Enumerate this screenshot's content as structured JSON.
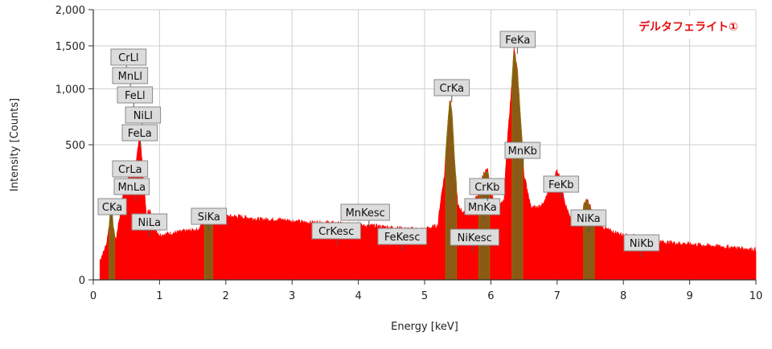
{
  "chart_data": {
    "type": "area",
    "title": "デルタフェライト①",
    "xlabel": "Energy [keV]",
    "ylabel": "Intensity [Counts]",
    "xlim": [
      0,
      10
    ],
    "ylim": [
      0,
      2000
    ],
    "y_scale": "sqrt",
    "x_ticks": [
      "0",
      "1",
      "2",
      "3",
      "4",
      "5",
      "6",
      "7",
      "8",
      "9",
      "10"
    ],
    "y_ticks": [
      {
        "value": 0,
        "label": "0"
      },
      {
        "value": 500,
        "label": "500"
      },
      {
        "value": 1000,
        "label": "1,000"
      },
      {
        "value": 1500,
        "label": "1,500"
      },
      {
        "value": 2000,
        "label": "2,000"
      }
    ],
    "grid": true,
    "colors": {
      "spectrum": "#ff0000",
      "peak_fill": "#8a5a16",
      "peak_edge": "#7a7a00",
      "title": "#e01010"
    },
    "series": [
      {
        "x": [
          0.1,
          0.15,
          0.2,
          0.24,
          0.27,
          0.3,
          0.34,
          0.4,
          0.45,
          0.5,
          0.55,
          0.6,
          0.65,
          0.7,
          0.75,
          0.8,
          0.85,
          0.9,
          1.0,
          1.2,
          1.4,
          1.6,
          1.7,
          1.74,
          1.78,
          1.85,
          2.0,
          2.2,
          2.5,
          2.8,
          3.0,
          3.2,
          3.5,
          3.8,
          4.0,
          4.2,
          4.5,
          4.8,
          5.0,
          5.2,
          5.3,
          5.38,
          5.41,
          5.45,
          5.5,
          5.6,
          5.7,
          5.8,
          5.9,
          5.95,
          6.0,
          6.1,
          6.2,
          6.3,
          6.35,
          6.4,
          6.45,
          6.5,
          6.6,
          6.7,
          6.8,
          6.9,
          7.0,
          7.06,
          7.12,
          7.2,
          7.35,
          7.44,
          7.48,
          7.55,
          7.65,
          7.8,
          8.0,
          8.26,
          8.5,
          9.0,
          9.5,
          10.0
        ],
        "y": [
          10,
          20,
          35,
          80,
          170,
          80,
          40,
          110,
          200,
          250,
          300,
          320,
          380,
          600,
          300,
          110,
          140,
          80,
          55,
          60,
          65,
          70,
          120,
          130,
          110,
          100,
          110,
          110,
          100,
          100,
          95,
          90,
          90,
          85,
          80,
          80,
          75,
          70,
          70,
          80,
          300,
          900,
          800,
          400,
          150,
          120,
          130,
          200,
          320,
          330,
          200,
          150,
          170,
          900,
          1470,
          1200,
          700,
          300,
          150,
          140,
          160,
          240,
          330,
          270,
          160,
          100,
          110,
          180,
          160,
          110,
          80,
          65,
          55,
          50,
          40,
          35,
          30,
          25
        ]
      }
    ],
    "peaks": [
      {
        "label": "CKa",
        "energy": 0.28
      },
      {
        "label": "CrLl",
        "energy": 0.5
      },
      {
        "label": "MnLl",
        "energy": 0.56
      },
      {
        "label": "FeLl",
        "energy": 0.61
      },
      {
        "label": "NiLl",
        "energy": 0.74
      },
      {
        "label": "FeLa",
        "energy": 0.71
      },
      {
        "label": "CrLa",
        "energy": 0.57
      },
      {
        "label": "MnLa",
        "energy": 0.64
      },
      {
        "label": "NiLa",
        "energy": 0.85
      },
      {
        "label": "SiKa",
        "energy": 1.74
      },
      {
        "label": "CrKesc",
        "energy": 3.67
      },
      {
        "label": "MnKesc",
        "energy": 4.16
      },
      {
        "label": "FeKesc",
        "energy": 4.66
      },
      {
        "label": "CrKa",
        "energy": 5.41
      },
      {
        "label": "NiKesc",
        "energy": 5.73
      },
      {
        "label": "MnKa",
        "energy": 5.9
      },
      {
        "label": "CrKb",
        "energy": 5.95
      },
      {
        "label": "FeKa",
        "energy": 6.4
      },
      {
        "label": "MnKb",
        "energy": 6.49
      },
      {
        "label": "FeKb",
        "energy": 7.06
      },
      {
        "label": "NiKa",
        "energy": 7.48
      },
      {
        "label": "NiKb",
        "energy": 8.26
      }
    ]
  }
}
